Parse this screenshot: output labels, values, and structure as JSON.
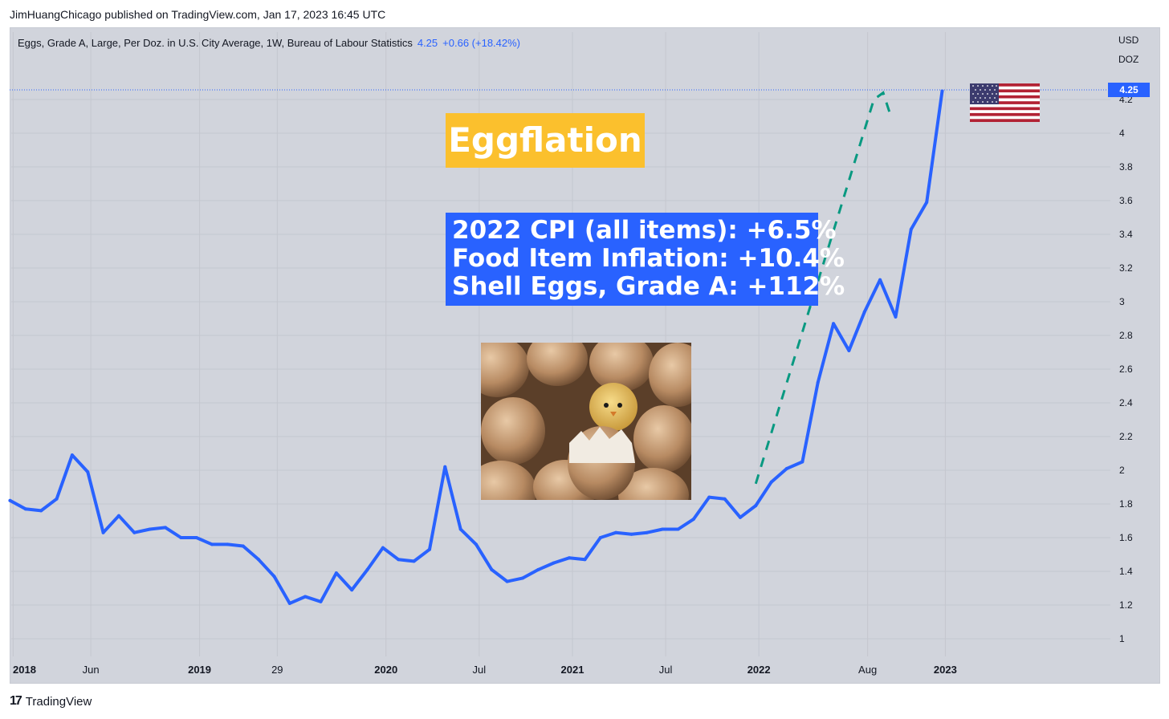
{
  "publisher": "JimHuangChicago published on TradingView.com, Jan 17, 2023 16:45 UTC",
  "legend": {
    "symbol": "Eggs, Grade A, Large, Per Doz. in U.S. City Average, 1W, Bureau of Labour Statistics",
    "last": "4.25",
    "change": "+0.66 (+18.42%)"
  },
  "units": {
    "currency": "USD",
    "unit": "DOZ"
  },
  "price_badge": "4.25",
  "annotations": {
    "title": "Eggflation",
    "stats": [
      "2022 CPI (all items): +6.5%",
      "Food Item Inflation: +10.4%",
      "Shell Eggs, Grade A: +112%"
    ]
  },
  "footer": {
    "logo": "17",
    "brand": "TradingView"
  },
  "colors": {
    "line": "#2962ff",
    "projection": "#089981",
    "title_bg": "#fbc02d",
    "stats_bg": "#2962ff",
    "pane_bg": "#d1d4dc"
  },
  "icons": {
    "flag": "us-flag-icon",
    "photo": "chick-hatching-egg-photo"
  },
  "chart_data": {
    "type": "line",
    "title": "",
    "xlabel": "",
    "ylabel": "USD / DOZ",
    "ylim": [
      0.9,
      4.35
    ],
    "y_ticks": [
      "1",
      "1.2",
      "1.4",
      "1.6",
      "1.8",
      "2",
      "2.2",
      "2.4",
      "2.6",
      "2.8",
      "3",
      "3.2",
      "3.4",
      "3.6",
      "3.8",
      "4",
      "4.2"
    ],
    "x_ticks": [
      {
        "label": "2018",
        "major": true,
        "t": 0.2
      },
      {
        "label": "Jun",
        "major": false,
        "t": 5.2
      },
      {
        "label": "2019",
        "major": true,
        "t": 12.2
      },
      {
        "label": "29",
        "major": false,
        "t": 17.2
      },
      {
        "label": "2020",
        "major": true,
        "t": 24.2
      },
      {
        "label": "Jul",
        "major": false,
        "t": 30.2
      },
      {
        "label": "2021",
        "major": true,
        "t": 36.2
      },
      {
        "label": "Jul",
        "major": false,
        "t": 42.2
      },
      {
        "label": "2022",
        "major": true,
        "t": 48.2
      },
      {
        "label": "Aug",
        "major": false,
        "t": 55.2
      },
      {
        "label": "2023",
        "major": true,
        "t": 60.2
      }
    ],
    "grid": true,
    "series": [
      {
        "values": [
          1.82,
          1.77,
          1.76,
          1.83,
          2.09,
          1.99,
          1.63,
          1.73,
          1.63,
          1.65,
          1.66,
          1.6,
          1.6,
          1.56,
          1.56,
          1.55,
          1.47,
          1.37,
          1.21,
          1.25,
          1.22,
          1.39,
          1.29,
          1.41,
          1.54,
          1.47,
          1.46,
          1.53,
          2.02,
          1.65,
          1.56,
          1.41,
          1.34,
          1.36,
          1.41,
          1.45,
          1.48,
          1.47,
          1.6,
          1.63,
          1.62,
          1.63,
          1.65,
          1.65,
          1.71,
          1.84,
          1.83,
          1.72,
          1.79,
          1.93,
          2.01,
          2.05,
          2.52,
          2.87,
          2.71,
          2.94,
          3.13,
          2.91,
          3.43,
          3.59,
          4.25
        ]
      },
      {
        "style": "dashed",
        "values": [
          [
            48.0,
            1.92
          ],
          [
            55.6,
            4.2
          ],
          [
            56.2,
            4.24
          ],
          [
            56.7,
            4.1
          ]
        ]
      }
    ]
  }
}
